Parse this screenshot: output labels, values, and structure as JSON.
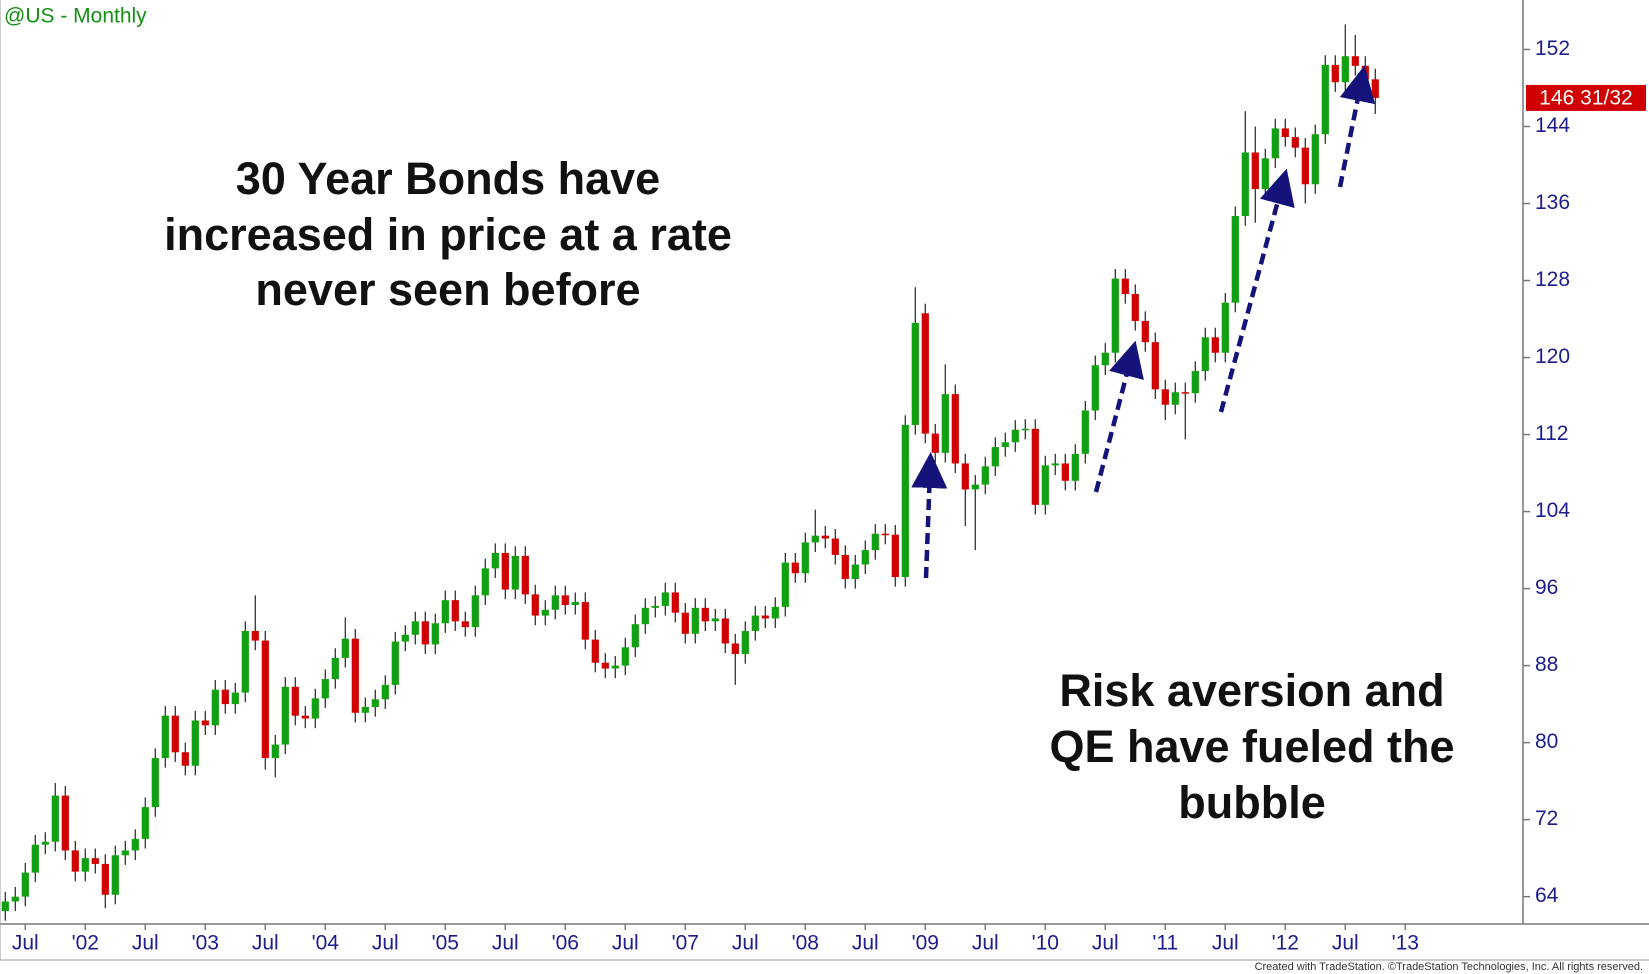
{
  "chart_data": {
    "type": "candlestick",
    "title": "@US - Monthly",
    "annotations": [
      [
        "30 Year Bonds have",
        "increased in price at a rate",
        "never seen before"
      ],
      [
        "Risk aversion and",
        "QE have fueled the",
        "bubble"
      ]
    ],
    "last_price": {
      "value": 146.96875,
      "label": "146 31/32"
    },
    "credit": "Created with TradeStation. ©TradeStation Technologies, Inc. All rights reserved.",
    "up_color": "#11a011",
    "down_color": "#d00000",
    "ylim": [
      61.16,
      157.14
    ],
    "yticks": [
      64,
      72,
      80,
      88,
      96,
      104,
      112,
      120,
      128,
      136,
      144,
      152
    ],
    "categories": [
      null,
      null,
      "Jul",
      null,
      null,
      null,
      null,
      null,
      "'02",
      null,
      null,
      null,
      null,
      null,
      "Jul",
      null,
      null,
      null,
      null,
      null,
      "'03",
      null,
      null,
      null,
      null,
      null,
      "Jul",
      null,
      null,
      null,
      null,
      null,
      "'04",
      null,
      null,
      null,
      null,
      null,
      "Jul",
      null,
      null,
      null,
      null,
      null,
      "'05",
      null,
      null,
      null,
      null,
      null,
      "Jul",
      null,
      null,
      null,
      null,
      null,
      "'06",
      null,
      null,
      null,
      null,
      null,
      "Jul",
      null,
      null,
      null,
      null,
      null,
      "'07",
      null,
      null,
      null,
      null,
      null,
      "Jul",
      null,
      null,
      null,
      null,
      null,
      "'08",
      null,
      null,
      null,
      null,
      null,
      "Jul",
      null,
      null,
      null,
      null,
      null,
      "'09",
      null,
      null,
      null,
      null,
      null,
      "Jul",
      null,
      null,
      null,
      null,
      null,
      "'10",
      null,
      null,
      null,
      null,
      null,
      "Jul",
      null,
      null,
      null,
      null,
      null,
      "'11",
      null,
      null,
      null,
      null,
      null,
      "Jul",
      null,
      null,
      null,
      null,
      null,
      "'12",
      null,
      null,
      null,
      null,
      null,
      "Jul",
      null,
      null,
      null,
      null,
      null,
      "'13"
    ],
    "open": [
      62.5,
      63.5,
      64,
      66.5,
      69.4,
      69.7,
      74.5,
      68.8,
      66.6,
      68,
      67.4,
      64.2,
      68.3,
      68.8,
      70,
      73.3,
      78.4,
      82.8,
      79,
      77.6,
      82.3,
      81.8,
      85.5,
      84,
      85.2,
      91.6,
      90.6,
      78.4,
      79.8,
      85.8,
      82.8,
      82.5,
      84.6,
      86.6,
      88.8,
      90.8,
      83.1,
      83.7,
      84.5,
      86,
      90.5,
      91.2,
      92.6,
      90.2,
      92.4,
      94.8,
      92.6,
      92,
      95.3,
      98.1,
      99.7,
      95.9,
      99.4,
      95.4,
      93.2,
      93.8,
      95.3,
      94.3,
      94.6,
      90.7,
      88.3,
      87.7,
      88,
      89.9,
      92.3,
      94,
      94.2,
      95.6,
      93.5,
      91.3,
      94,
      92.6,
      92.9,
      90.3,
      89.2,
      91.6,
      93.2,
      92.9,
      94.1,
      98.7,
      97.6,
      100.8,
      101.5,
      101.2,
      99.5,
      97,
      98.5,
      100,
      101.7,
      101.6,
      97.2,
      113,
      124.6,
      112.1,
      110.1,
      116.2,
      109,
      106.3,
      106.8,
      108.7,
      110.7,
      111.2,
      112.5,
      112.6,
      104.7,
      108.8,
      109,
      107.2,
      110,
      114.5,
      119.2,
      120.5,
      128.2,
      126.6,
      123.8,
      121.6,
      116.7,
      115.1,
      116.4,
      116.3,
      118.6,
      122.1,
      120.5,
      125.7,
      134.7,
      141.3,
      137.5,
      140.7,
      143.8,
      142.9,
      141.8,
      138,
      143.2,
      150.4,
      148.6,
      151.3,
      150.3,
      148.9,
      null,
      null,
      null
    ],
    "high": [
      64.5,
      65,
      67.5,
      70.4,
      70.7,
      75.8,
      75.5,
      69.8,
      69,
      69,
      68.4,
      69.3,
      69.8,
      71,
      74.3,
      79.4,
      83.8,
      83.8,
      80,
      83.3,
      83.3,
      86.5,
      86.5,
      86.2,
      92.6,
      95.3,
      91.6,
      80.8,
      86.8,
      86.8,
      83.8,
      85.6,
      87.6,
      89.8,
      93,
      91.8,
      84.7,
      85.5,
      87,
      91.5,
      92.2,
      93.6,
      93.6,
      93.4,
      95.8,
      95.8,
      93.6,
      96.3,
      99.1,
      100.7,
      100.7,
      100.4,
      100.4,
      96.4,
      94.8,
      96.3,
      96.3,
      95.6,
      95.6,
      91.7,
      89.3,
      89,
      90.9,
      93.3,
      95,
      95.2,
      96.6,
      96.6,
      94.5,
      95,
      95,
      93.9,
      93.9,
      91.3,
      92.6,
      94.2,
      94.2,
      95.1,
      99.7,
      99.7,
      101.8,
      104.2,
      102.5,
      102.2,
      100.5,
      99.5,
      101,
      102.7,
      102.7,
      102.6,
      114,
      127.3,
      125.6,
      113.1,
      119.3,
      117.2,
      110,
      107.8,
      109.7,
      111.7,
      112.2,
      113.5,
      113.6,
      113.6,
      109.8,
      110,
      110,
      111,
      115.5,
      120.2,
      121.5,
      129.2,
      129.2,
      127.6,
      124.8,
      122.6,
      117.7,
      117.4,
      117.4,
      119.6,
      123.1,
      123.1,
      126.7,
      135.7,
      145.6,
      144,
      141.7,
      144.8,
      144.8,
      143.9,
      142.8,
      144.2,
      151.4,
      151.4,
      154.6,
      153.5,
      151.3,
      150,
      null,
      null,
      null
    ],
    "low": [
      61.5,
      62.5,
      63,
      65.5,
      68.4,
      68.7,
      67.8,
      65.6,
      65.6,
      66.4,
      62.8,
      63.2,
      67.3,
      67.8,
      69,
      72.3,
      77.4,
      78,
      76.6,
      76.6,
      80.8,
      80.8,
      83,
      83,
      84.2,
      89.6,
      77.2,
      76.4,
      78.8,
      81.8,
      81.5,
      81.5,
      83.6,
      85.6,
      87.8,
      82.1,
      82.1,
      82.7,
      83.5,
      85,
      89.5,
      90.2,
      89.2,
      89.2,
      91.4,
      91.6,
      91,
      91,
      94.3,
      97.1,
      94.9,
      94.9,
      94.4,
      92.2,
      92.2,
      92.8,
      93.3,
      93.3,
      89.7,
      87.3,
      86.7,
      86.7,
      87,
      88.9,
      91.3,
      93,
      93.2,
      92.5,
      90.3,
      90.3,
      91.6,
      91.6,
      89.3,
      86,
      88.2,
      90.6,
      91.9,
      91.9,
      93.1,
      96.6,
      96.6,
      99.8,
      100.2,
      98.5,
      96,
      96,
      97.5,
      99,
      100.6,
      96.2,
      96.2,
      112,
      111.1,
      109.1,
      109.1,
      108,
      102.5,
      100,
      105.8,
      107.7,
      109.7,
      110.2,
      111.5,
      103.7,
      103.7,
      107.8,
      106.2,
      106.2,
      109,
      113.5,
      118.2,
      119.5,
      125.6,
      122.8,
      120.6,
      115.7,
      113.5,
      114.1,
      111.5,
      115.3,
      117.6,
      119.5,
      119.5,
      124.7,
      133.7,
      134,
      136.5,
      139.7,
      141.9,
      140.8,
      136,
      137,
      142.2,
      147.6,
      147.6,
      149.3,
      147.9,
      145.3,
      null,
      null,
      null
    ],
    "close": [
      63.5,
      64,
      66.5,
      69.4,
      69.7,
      74.5,
      68.8,
      66.6,
      68,
      67.4,
      64.2,
      68.3,
      68.8,
      70,
      73.3,
      78.4,
      82.8,
      79,
      77.6,
      82.3,
      81.8,
      85.5,
      84,
      85.2,
      91.6,
      90.6,
      78.4,
      79.8,
      85.8,
      82.8,
      82.5,
      84.6,
      86.6,
      88.8,
      90.8,
      83.1,
      83.7,
      84.5,
      86,
      90.5,
      91.2,
      92.6,
      90.2,
      92.4,
      94.8,
      92.6,
      92,
      95.3,
      98.1,
      99.7,
      95.9,
      99.4,
      95.4,
      93.2,
      93.8,
      95.3,
      94.3,
      94.6,
      90.7,
      88.3,
      87.7,
      88,
      89.9,
      92.3,
      94,
      94.2,
      95.6,
      93.5,
      91.3,
      94,
      92.6,
      92.9,
      90.3,
      89.2,
      91.6,
      93.2,
      92.9,
      94.1,
      98.7,
      97.6,
      100.8,
      101.5,
      101.2,
      99.5,
      97,
      98.5,
      100,
      101.7,
      101.6,
      97.2,
      113,
      123.6,
      112.1,
      110.1,
      116.2,
      109,
      106.3,
      106.8,
      108.7,
      110.7,
      111.2,
      112.5,
      112.6,
      104.7,
      108.8,
      109,
      107.2,
      110,
      114.5,
      119.2,
      120.5,
      128.2,
      126.6,
      123.8,
      121.6,
      116.7,
      115.1,
      116.4,
      116.3,
      118.6,
      122.1,
      120.5,
      125.7,
      134.7,
      141.3,
      137.5,
      140.7,
      143.8,
      142.9,
      141.8,
      138,
      143.2,
      150.4,
      148.6,
      151.3,
      150.3,
      148.9,
      146.96875,
      null,
      null,
      null
    ]
  }
}
